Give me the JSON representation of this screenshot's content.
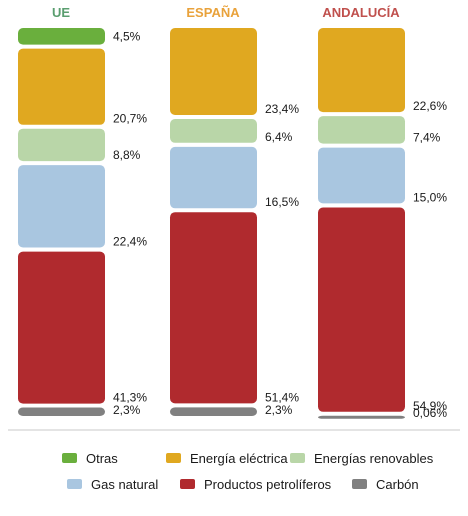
{
  "chart_data": {
    "type": "bar",
    "stacked": true,
    "unit": "%",
    "categories": [
      "UE",
      "ESPAÑA",
      "ANDALUCÍA"
    ],
    "category_colors": [
      "#5a9e6f",
      "#e9a23b",
      "#c0504d"
    ],
    "series": [
      {
        "name": "Otras",
        "color": "#6aaf3d",
        "values": [
          4.5,
          0,
          0
        ],
        "labels": [
          "4,5%",
          "",
          ""
        ]
      },
      {
        "name": "Energía eléctrica",
        "color": "#e0a820",
        "values": [
          20.7,
          23.4,
          22.6
        ],
        "labels": [
          "20,7%",
          "23,4%",
          "22,6%"
        ]
      },
      {
        "name": "Energías renovables",
        "color": "#b9d6a8",
        "values": [
          8.8,
          6.4,
          7.4
        ],
        "labels": [
          "8,8%",
          "6,4%",
          "7,4%"
        ]
      },
      {
        "name": "Gas natural",
        "color": "#a9c6e0",
        "values": [
          22.4,
          16.5,
          15.0
        ],
        "labels": [
          "22,4%",
          "16,5%",
          "15,0%"
        ]
      },
      {
        "name": "Productos petrolíferos",
        "color": "#b02a2e",
        "values": [
          41.3,
          51.4,
          54.9
        ],
        "labels": [
          "41,3%",
          "51,4%",
          "54,9%"
        ]
      },
      {
        "name": "Carbón",
        "color": "#808080",
        "values": [
          2.3,
          2.3,
          0.06
        ],
        "labels": [
          "2,3%",
          "2,3%",
          "0,06%"
        ]
      }
    ],
    "legend_position": "bottom",
    "grid": false
  }
}
